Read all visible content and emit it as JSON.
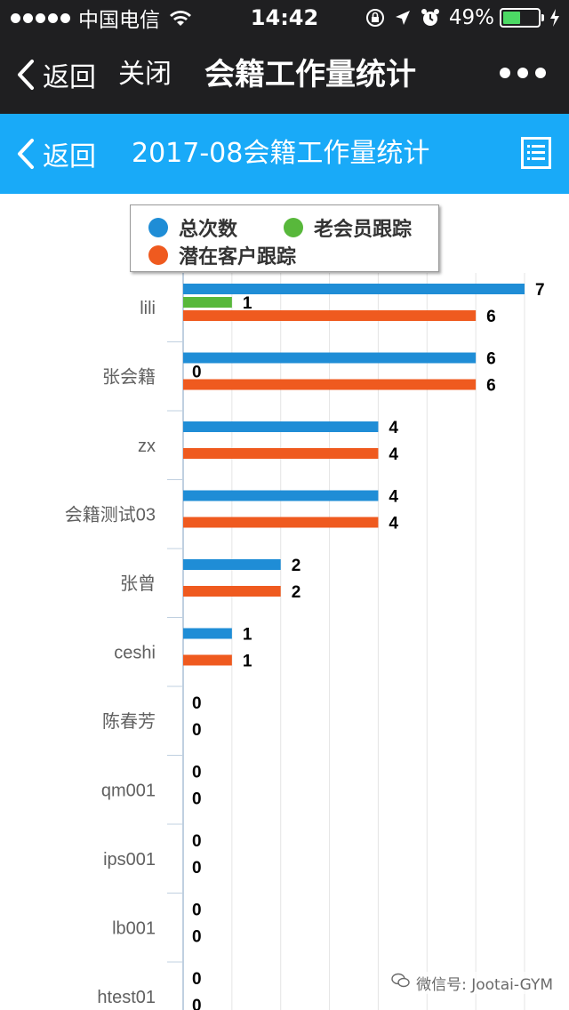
{
  "status_bar": {
    "carrier": "中国电信",
    "time": "14:42",
    "battery": "49%",
    "battery_level": 0.49
  },
  "nav": {
    "back_label": "返回",
    "close_label": "关闭",
    "title": "会籍工作量统计"
  },
  "page": {
    "back_label": "返回",
    "title": "2017-08会籍工作量统计"
  },
  "colors": {
    "total": "#1f8dd6",
    "old_member": "#58b83b",
    "potential": "#ef5a1f",
    "header_bar": "#19aaf8",
    "top_bar": "#1f1f21"
  },
  "chart_data": {
    "type": "bar",
    "orientation": "horizontal",
    "categories": [
      "lili",
      "张会籍",
      "zx",
      "会籍测试03",
      "张曾",
      "ceshi",
      "陈春芳",
      "qm001",
      "ips001",
      "lb001",
      "htest01"
    ],
    "series": [
      {
        "name": "总次数",
        "color": "#1f8dd6",
        "values": [
          7,
          6,
          4,
          4,
          2,
          1,
          0,
          0,
          0,
          0,
          0
        ]
      },
      {
        "name": "老会员跟踪",
        "color": "#58b83b",
        "values": [
          1,
          0,
          null,
          null,
          null,
          null,
          null,
          null,
          null,
          null,
          null
        ]
      },
      {
        "name": "潜在客户跟踪",
        "color": "#ef5a1f",
        "values": [
          6,
          6,
          4,
          4,
          2,
          1,
          0,
          0,
          0,
          0,
          0
        ]
      }
    ],
    "xlim": [
      0,
      8
    ],
    "legend": "top",
    "grid": true
  },
  "watermark": {
    "text": "微信号: Jootai-GYM"
  }
}
